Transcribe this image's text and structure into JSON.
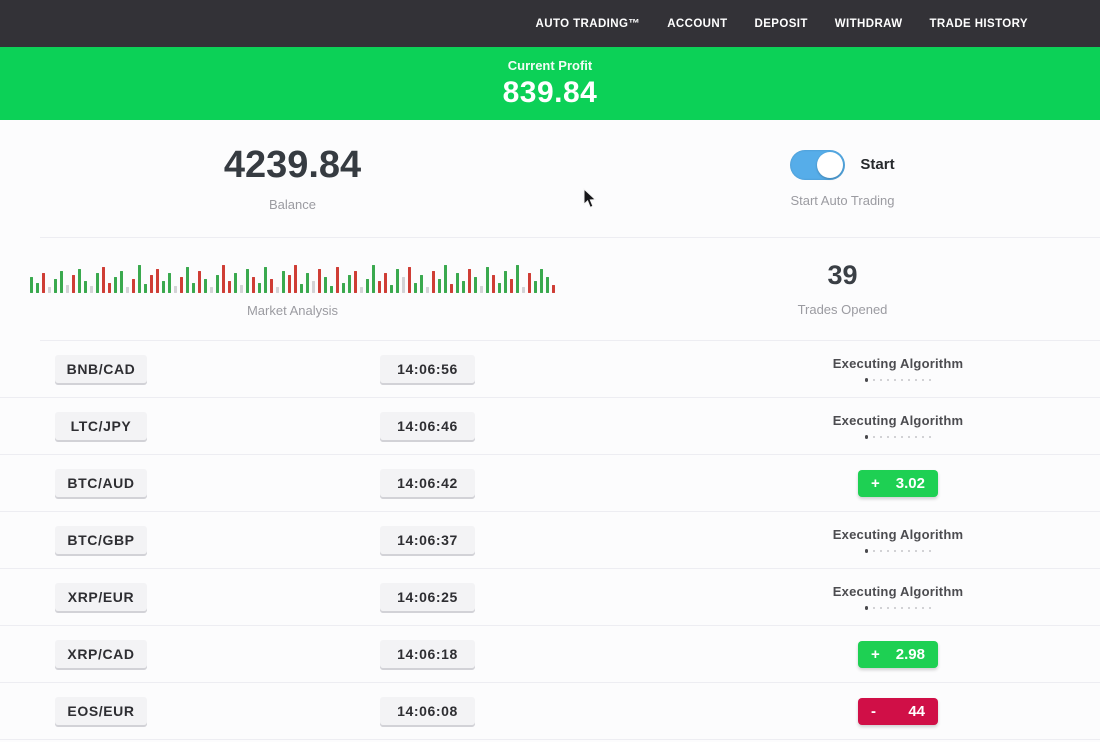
{
  "nav": {
    "items": [
      "AUTO TRADING™",
      "ACCOUNT",
      "DEPOSIT",
      "WITHDRAW",
      "TRADE HISTORY"
    ]
  },
  "banner": {
    "label": "Current Profit",
    "value": "839.84"
  },
  "stats": {
    "balance": {
      "value": "4239.84",
      "label": "Balance"
    },
    "auto_trading": {
      "toggle_label": "Start",
      "caption": "Start Auto Trading",
      "toggle_on": true
    },
    "market": {
      "label": "Market Analysis"
    },
    "trades_opened": {
      "value": "39",
      "label": "Trades Opened"
    }
  },
  "trades": {
    "executing_label": "Executing Algorithm",
    "dots_count": 10,
    "rows": [
      {
        "pair": "BNB/CAD",
        "time": "14:06:56",
        "status": {
          "type": "executing"
        }
      },
      {
        "pair": "LTC/JPY",
        "time": "14:06:46",
        "status": {
          "type": "executing"
        }
      },
      {
        "pair": "BTC/AUD",
        "time": "14:06:42",
        "status": {
          "type": "profit",
          "sign": "+",
          "value": "3.02"
        }
      },
      {
        "pair": "BTC/GBP",
        "time": "14:06:37",
        "status": {
          "type": "executing"
        }
      },
      {
        "pair": "XRP/EUR",
        "time": "14:06:25",
        "status": {
          "type": "executing"
        }
      },
      {
        "pair": "XRP/CAD",
        "time": "14:06:18",
        "status": {
          "type": "profit",
          "sign": "+",
          "value": "2.98"
        }
      },
      {
        "pair": "EOS/EUR",
        "time": "14:06:08",
        "status": {
          "type": "loss",
          "sign": "-",
          "value": "44"
        }
      }
    ]
  },
  "colors": {
    "banner_green": "#0cd157",
    "badge_green": "#1ed053",
    "badge_red": "#d00f47",
    "toggle_blue": "#56ade9",
    "bar_green": "#3aa94e",
    "bar_red": "#cf3d35",
    "bar_gray": "#d3d3d6",
    "navbar_bg": "#333237"
  },
  "chart_data": {
    "type": "bar",
    "title": "Market Analysis",
    "note": "decorative mini price-bar strip; heights in px, color g=green r=red l=gray",
    "bars": [
      [
        16,
        "g"
      ],
      [
        10,
        "g"
      ],
      [
        20,
        "r"
      ],
      [
        6,
        "l"
      ],
      [
        14,
        "g"
      ],
      [
        22,
        "g"
      ],
      [
        8,
        "l"
      ],
      [
        18,
        "r"
      ],
      [
        24,
        "g"
      ],
      [
        12,
        "g"
      ],
      [
        7,
        "l"
      ],
      [
        20,
        "g"
      ],
      [
        26,
        "r"
      ],
      [
        10,
        "r"
      ],
      [
        16,
        "g"
      ],
      [
        22,
        "g"
      ],
      [
        6,
        "l"
      ],
      [
        14,
        "r"
      ],
      [
        28,
        "g"
      ],
      [
        9,
        "g"
      ],
      [
        18,
        "r"
      ],
      [
        24,
        "r"
      ],
      [
        12,
        "g"
      ],
      [
        20,
        "g"
      ],
      [
        7,
        "l"
      ],
      [
        16,
        "r"
      ],
      [
        26,
        "g"
      ],
      [
        10,
        "g"
      ],
      [
        22,
        "r"
      ],
      [
        14,
        "g"
      ],
      [
        6,
        "l"
      ],
      [
        18,
        "g"
      ],
      [
        28,
        "r"
      ],
      [
        12,
        "r"
      ],
      [
        20,
        "g"
      ],
      [
        8,
        "l"
      ],
      [
        24,
        "g"
      ],
      [
        16,
        "r"
      ],
      [
        10,
        "g"
      ],
      [
        26,
        "g"
      ],
      [
        14,
        "r"
      ],
      [
        6,
        "l"
      ],
      [
        22,
        "g"
      ],
      [
        18,
        "r"
      ],
      [
        28,
        "r"
      ],
      [
        9,
        "g"
      ],
      [
        20,
        "g"
      ],
      [
        12,
        "l"
      ],
      [
        24,
        "r"
      ],
      [
        16,
        "g"
      ],
      [
        7,
        "g"
      ],
      [
        26,
        "r"
      ],
      [
        10,
        "g"
      ],
      [
        18,
        "g"
      ],
      [
        22,
        "r"
      ],
      [
        6,
        "l"
      ],
      [
        14,
        "g"
      ],
      [
        28,
        "g"
      ],
      [
        12,
        "r"
      ],
      [
        20,
        "r"
      ],
      [
        8,
        "g"
      ],
      [
        24,
        "g"
      ],
      [
        16,
        "l"
      ],
      [
        26,
        "r"
      ],
      [
        10,
        "g"
      ],
      [
        18,
        "g"
      ],
      [
        6,
        "l"
      ],
      [
        22,
        "r"
      ],
      [
        14,
        "g"
      ],
      [
        28,
        "g"
      ],
      [
        9,
        "r"
      ],
      [
        20,
        "g"
      ],
      [
        12,
        "g"
      ],
      [
        24,
        "r"
      ],
      [
        16,
        "g"
      ],
      [
        7,
        "l"
      ],
      [
        26,
        "g"
      ],
      [
        18,
        "r"
      ],
      [
        10,
        "g"
      ],
      [
        22,
        "g"
      ],
      [
        14,
        "r"
      ],
      [
        28,
        "g"
      ],
      [
        6,
        "l"
      ],
      [
        20,
        "r"
      ],
      [
        12,
        "g"
      ],
      [
        24,
        "g"
      ],
      [
        16,
        "g"
      ],
      [
        8,
        "r"
      ]
    ]
  }
}
